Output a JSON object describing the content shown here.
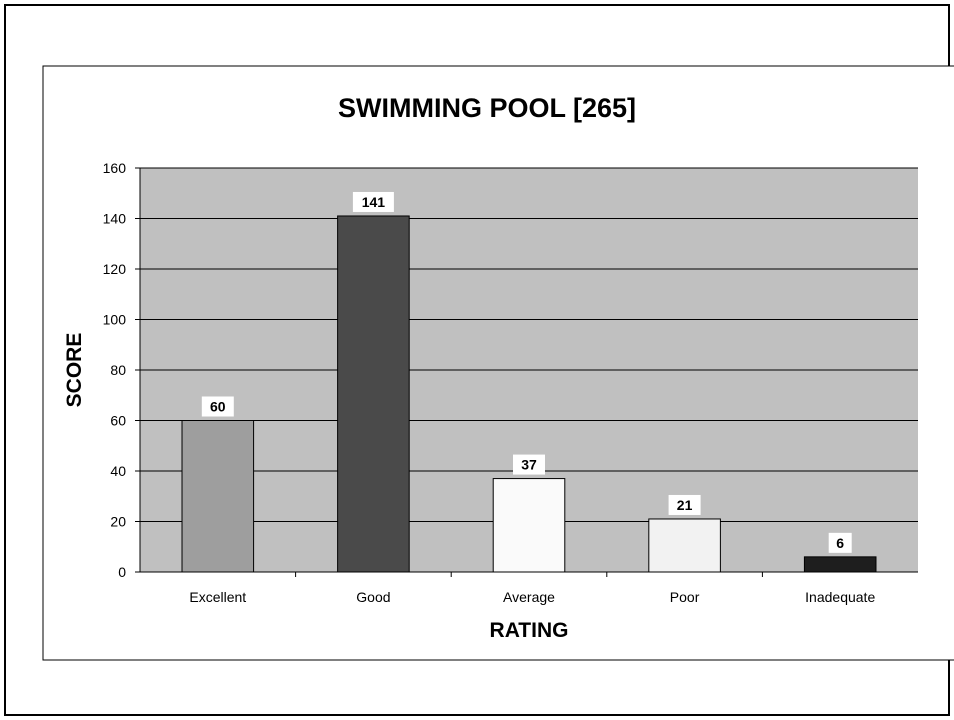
{
  "chart_data": {
    "type": "bar",
    "title": "SWIMMING POOL [265]",
    "xlabel": "RATING",
    "ylabel": "SCORE",
    "categories": [
      "Excellent",
      "Good",
      "Average",
      "Poor",
      "Inadequate"
    ],
    "values": [
      60,
      141,
      37,
      21,
      6
    ],
    "bar_colors": [
      "#9e9e9e",
      "#4a4a4a",
      "#fafafa",
      "#f2f2f2",
      "#1e1e1e"
    ],
    "ylim": [
      0,
      160
    ],
    "yticks": [
      0,
      20,
      40,
      60,
      80,
      100,
      120,
      140,
      160
    ],
    "grid": true,
    "legend": "none",
    "plot_background": "#c0c0c0"
  }
}
